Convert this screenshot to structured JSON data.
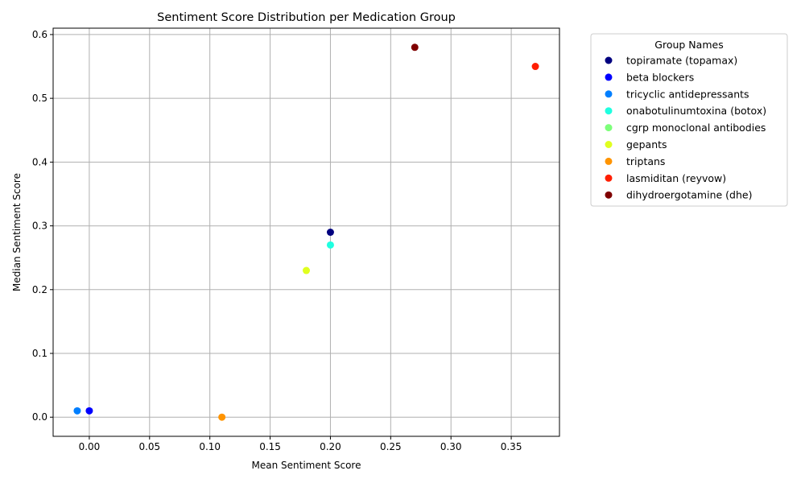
{
  "chart_data": {
    "type": "scatter",
    "title": "Sentiment Score Distribution per Medication Group",
    "xlabel": "Mean Sentiment Score",
    "ylabel": "Median Sentiment Score",
    "xlim": [
      -0.03,
      0.39
    ],
    "ylim": [
      -0.03,
      0.61
    ],
    "xticks": [
      "0.00",
      "0.05",
      "0.10",
      "0.15",
      "0.20",
      "0.25",
      "0.30",
      "0.35"
    ],
    "yticks": [
      "0.0",
      "0.1",
      "0.2",
      "0.3",
      "0.4",
      "0.5",
      "0.6"
    ],
    "grid": true,
    "legend_title": "Group Names",
    "legend_position": "outside-top-right",
    "series": [
      {
        "name": "topiramate (topamax)",
        "color": "#00007f",
        "x": 0.2,
        "y": 0.29
      },
      {
        "name": "beta blockers",
        "color": "#0000ff",
        "x": 0.0,
        "y": 0.01
      },
      {
        "name": "tricyclic antidepressants",
        "color": "#007fff",
        "x": -0.01,
        "y": 0.01
      },
      {
        "name": "onabotulinumtoxina (botox)",
        "color": "#1fffe0",
        "x": 0.2,
        "y": 0.27
      },
      {
        "name": "cgrp monoclonal antibodies",
        "color": "#7dff7a",
        "x": null,
        "y": null
      },
      {
        "name": "gepants",
        "color": "#e0ff1f",
        "x": 0.18,
        "y": 0.23
      },
      {
        "name": "triptans",
        "color": "#ff9400",
        "x": 0.11,
        "y": 0.0
      },
      {
        "name": "lasmiditan (reyvow)",
        "color": "#ff1e00",
        "x": 0.37,
        "y": 0.55
      },
      {
        "name": "dihydroergotamine (dhe)",
        "color": "#7f0000",
        "x": 0.27,
        "y": 0.58
      }
    ]
  }
}
